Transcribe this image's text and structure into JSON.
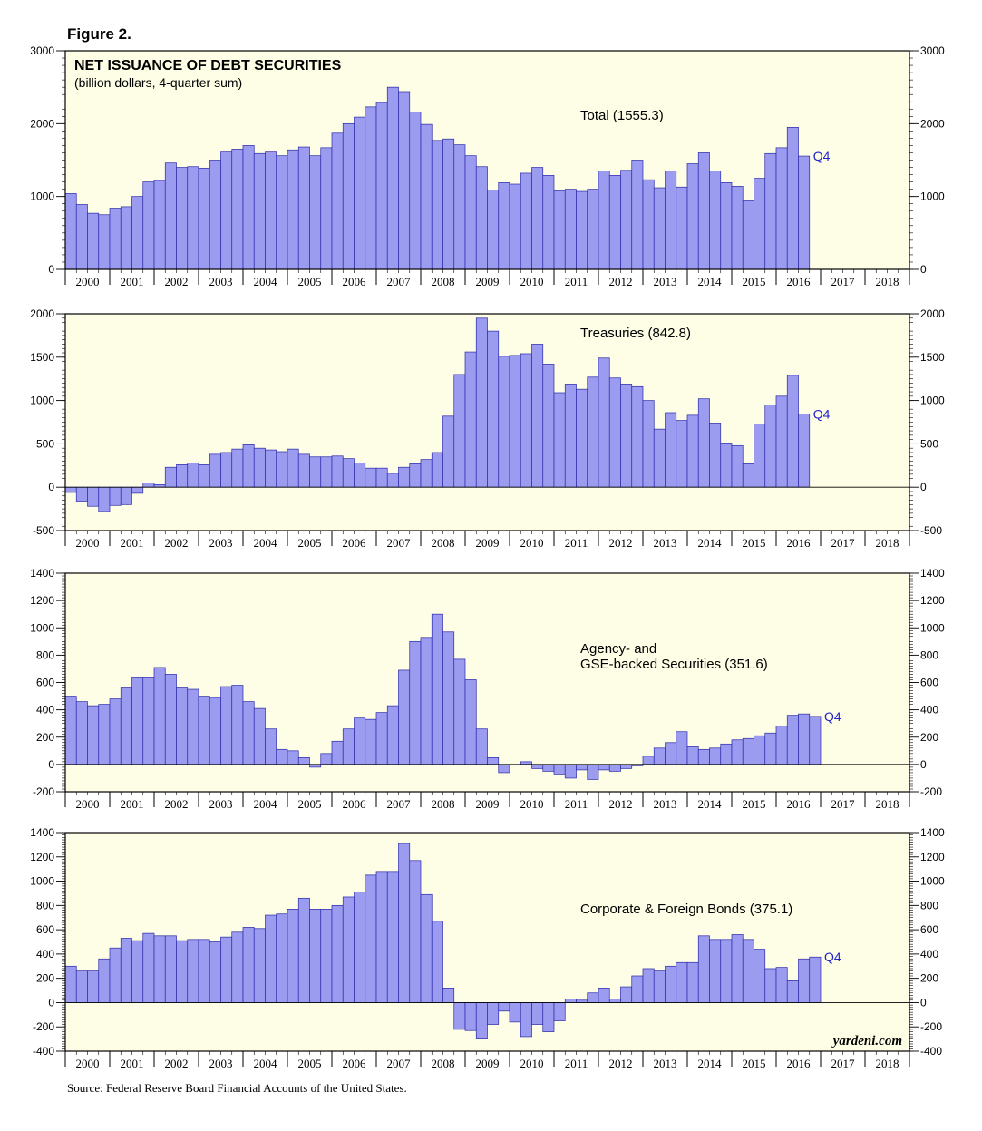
{
  "figure_label": "Figure 2.",
  "source": "Source: Federal Reserve Board Financial Accounts of the United States.",
  "watermark": "yardeni.com",
  "colors": {
    "bar_fill": "#9b9bf0",
    "bar_stroke": "#2a2aa8",
    "panel_bg": "#fefee6",
    "q4_text": "#2222cc"
  },
  "chart_data": [
    {
      "type": "bar",
      "title": "NET ISSUANCE OF DEBT SECURITIES",
      "subtitle": "(billion dollars, 4-quarter sum)",
      "series_label": "Total (1555.3)",
      "latest_label": "Q4",
      "xlabel": "",
      "ylabel": "",
      "x_tick_labels": [
        "2000",
        "2001",
        "2002",
        "2003",
        "2004",
        "2005",
        "2006",
        "2007",
        "2008",
        "2009",
        "2010",
        "2011",
        "2012",
        "2013",
        "2014",
        "2015",
        "2016",
        "2017",
        "2018"
      ],
      "ylim": [
        0,
        3000
      ],
      "y_ticks": [
        0,
        1000,
        2000,
        3000
      ],
      "zero_line": false,
      "values": [
        1040,
        890,
        770,
        750,
        840,
        860,
        1000,
        1200,
        1220,
        1460,
        1400,
        1410,
        1390,
        1500,
        1610,
        1650,
        1700,
        1590,
        1610,
        1560,
        1640,
        1680,
        1560,
        1670,
        1870,
        2000,
        2090,
        2230,
        2290,
        2500,
        2440,
        2160,
        1990,
        1770,
        1790,
        1710,
        1560,
        1410,
        1090,
        1190,
        1170,
        1320,
        1400,
        1290,
        1080,
        1100,
        1070,
        1100,
        1350,
        1290,
        1360,
        1500,
        1230,
        1120,
        1350,
        1130,
        1450,
        1600,
        1350,
        1190,
        1140,
        940,
        1250,
        1590,
        1670,
        1950,
        1555
      ]
    },
    {
      "type": "bar",
      "series_label": "Treasuries (842.8)",
      "latest_label": "Q4",
      "xlabel": "",
      "ylabel": "",
      "x_tick_labels": [
        "2000",
        "2001",
        "2002",
        "2003",
        "2004",
        "2005",
        "2006",
        "2007",
        "2008",
        "2009",
        "2010",
        "2011",
        "2012",
        "2013",
        "2014",
        "2015",
        "2016",
        "2017",
        "2018"
      ],
      "ylim": [
        -500,
        2000
      ],
      "y_ticks": [
        -500,
        0,
        500,
        1000,
        1500,
        2000
      ],
      "zero_line": true,
      "values": [
        -60,
        -160,
        -220,
        -280,
        -210,
        -200,
        -70,
        50,
        30,
        230,
        260,
        280,
        260,
        380,
        400,
        440,
        490,
        450,
        430,
        410,
        440,
        380,
        350,
        350,
        360,
        330,
        280,
        220,
        220,
        160,
        230,
        270,
        320,
        400,
        820,
        1300,
        1560,
        1950,
        1800,
        1510,
        1520,
        1540,
        1650,
        1420,
        1090,
        1190,
        1130,
        1270,
        1490,
        1260,
        1190,
        1160,
        1000,
        670,
        860,
        770,
        830,
        1020,
        740,
        510,
        480,
        270,
        730,
        950,
        1050,
        1290,
        843
      ]
    },
    {
      "type": "bar",
      "series_label_lines": [
        "Agency- and",
        "GSE-backed Securities (351.6)"
      ],
      "latest_label": "Q4",
      "xlabel": "",
      "ylabel": "",
      "x_tick_labels": [
        "2000",
        "2001",
        "2002",
        "2003",
        "2004",
        "2005",
        "2006",
        "2007",
        "2008",
        "2009",
        "2010",
        "2011",
        "2012",
        "2013",
        "2014",
        "2015",
        "2016",
        "2017",
        "2018"
      ],
      "ylim": [
        -200,
        1400
      ],
      "y_ticks": [
        -200,
        0,
        200,
        400,
        600,
        800,
        1000,
        1200,
        1400
      ],
      "zero_line": true,
      "values": [
        500,
        460,
        430,
        440,
        480,
        560,
        640,
        640,
        710,
        660,
        560,
        550,
        500,
        490,
        570,
        580,
        460,
        410,
        260,
        110,
        100,
        50,
        -20,
        80,
        170,
        260,
        340,
        330,
        380,
        430,
        690,
        900,
        930,
        1100,
        970,
        770,
        620,
        260,
        50,
        -60,
        0,
        20,
        -30,
        -50,
        -70,
        -100,
        -40,
        -110,
        -40,
        -50,
        -30,
        -10,
        60,
        120,
        160,
        240,
        130,
        110,
        120,
        150,
        180,
        190,
        210,
        230,
        280,
        360,
        370,
        352
      ]
    },
    {
      "type": "bar",
      "series_label": "Corporate & Foreign Bonds (375.1)",
      "latest_label": "Q4",
      "xlabel": "",
      "ylabel": "",
      "x_tick_labels": [
        "2000",
        "2001",
        "2002",
        "2003",
        "2004",
        "2005",
        "2006",
        "2007",
        "2008",
        "2009",
        "2010",
        "2011",
        "2012",
        "2013",
        "2014",
        "2015",
        "2016",
        "2017",
        "2018"
      ],
      "ylim": [
        -400,
        1400
      ],
      "y_ticks": [
        -400,
        -200,
        0,
        200,
        400,
        600,
        800,
        1000,
        1200,
        1400
      ],
      "zero_line": true,
      "values": [
        300,
        260,
        260,
        360,
        450,
        530,
        510,
        570,
        550,
        550,
        510,
        520,
        520,
        500,
        540,
        580,
        620,
        610,
        720,
        730,
        770,
        860,
        770,
        770,
        800,
        870,
        910,
        1050,
        1080,
        1080,
        1310,
        1170,
        890,
        670,
        120,
        -220,
        -230,
        -300,
        -180,
        -70,
        -160,
        -280,
        -180,
        -240,
        -150,
        30,
        20,
        80,
        120,
        30,
        130,
        220,
        280,
        260,
        300,
        330,
        330,
        550,
        520,
        520,
        560,
        520,
        440,
        280,
        290,
        180,
        360,
        375
      ]
    }
  ]
}
